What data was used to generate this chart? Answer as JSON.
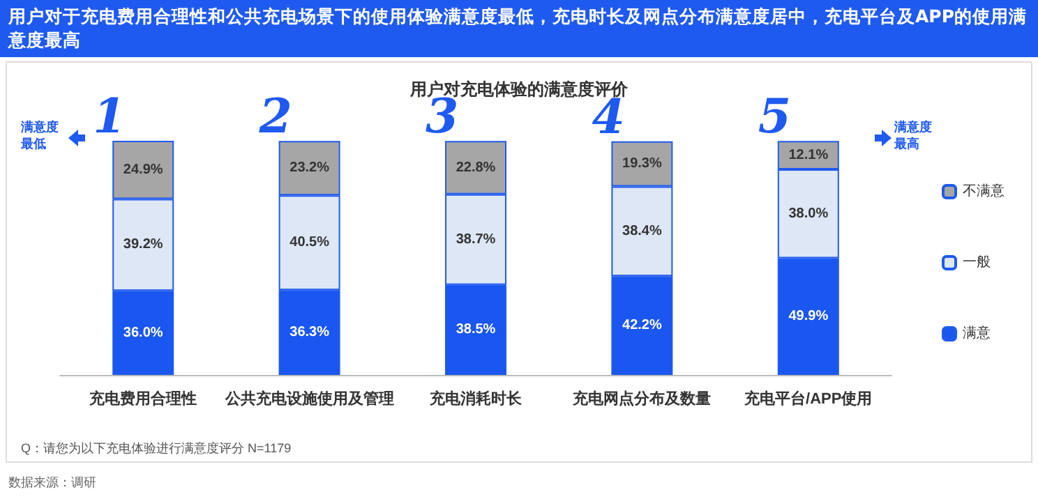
{
  "chart_data": {
    "type": "bar",
    "stacked": true,
    "title": "用户对充电体验的满意度评价",
    "subtitle": "用户对于充电费用合理性和公共充电场景下的使用体验满意度最低，充电时长及网点分布满意度居中，充电平台及APP的使用满意度最高",
    "categories": [
      "充电费用合理性",
      "公共充电设施使用及管理",
      "充电消耗时长",
      "充电网点分布及数量",
      "充电平台/APP使用"
    ],
    "series": [
      {
        "name": "满意",
        "color": "#1a56f0",
        "values": [
          36.0,
          36.3,
          38.5,
          42.2,
          49.9
        ],
        "value_labels": [
          "36.0%",
          "36.3%",
          "38.5%",
          "42.2%",
          "49.9%"
        ]
      },
      {
        "name": "一般",
        "color": "#dde7f6",
        "values": [
          39.2,
          40.5,
          38.7,
          38.4,
          38.0
        ],
        "value_labels": [
          "39.2%",
          "40.5%",
          "38.7%",
          "38.4%",
          "38.0%"
        ]
      },
      {
        "name": "不满意",
        "color": "#a6a6a6",
        "values": [
          24.9,
          23.2,
          22.8,
          19.3,
          12.1
        ],
        "value_labels": [
          "24.9%",
          "23.2%",
          "22.8%",
          "19.3%",
          "12.1%"
        ]
      }
    ],
    "annotations": [
      "1",
      "2",
      "3",
      "4",
      "5",
      "满意度最低",
      "满意度最高",
      "Q：请您为以下充电体验进行满意度评分 N=1179",
      "数据来源：调研"
    ],
    "legend": "right"
  }
}
